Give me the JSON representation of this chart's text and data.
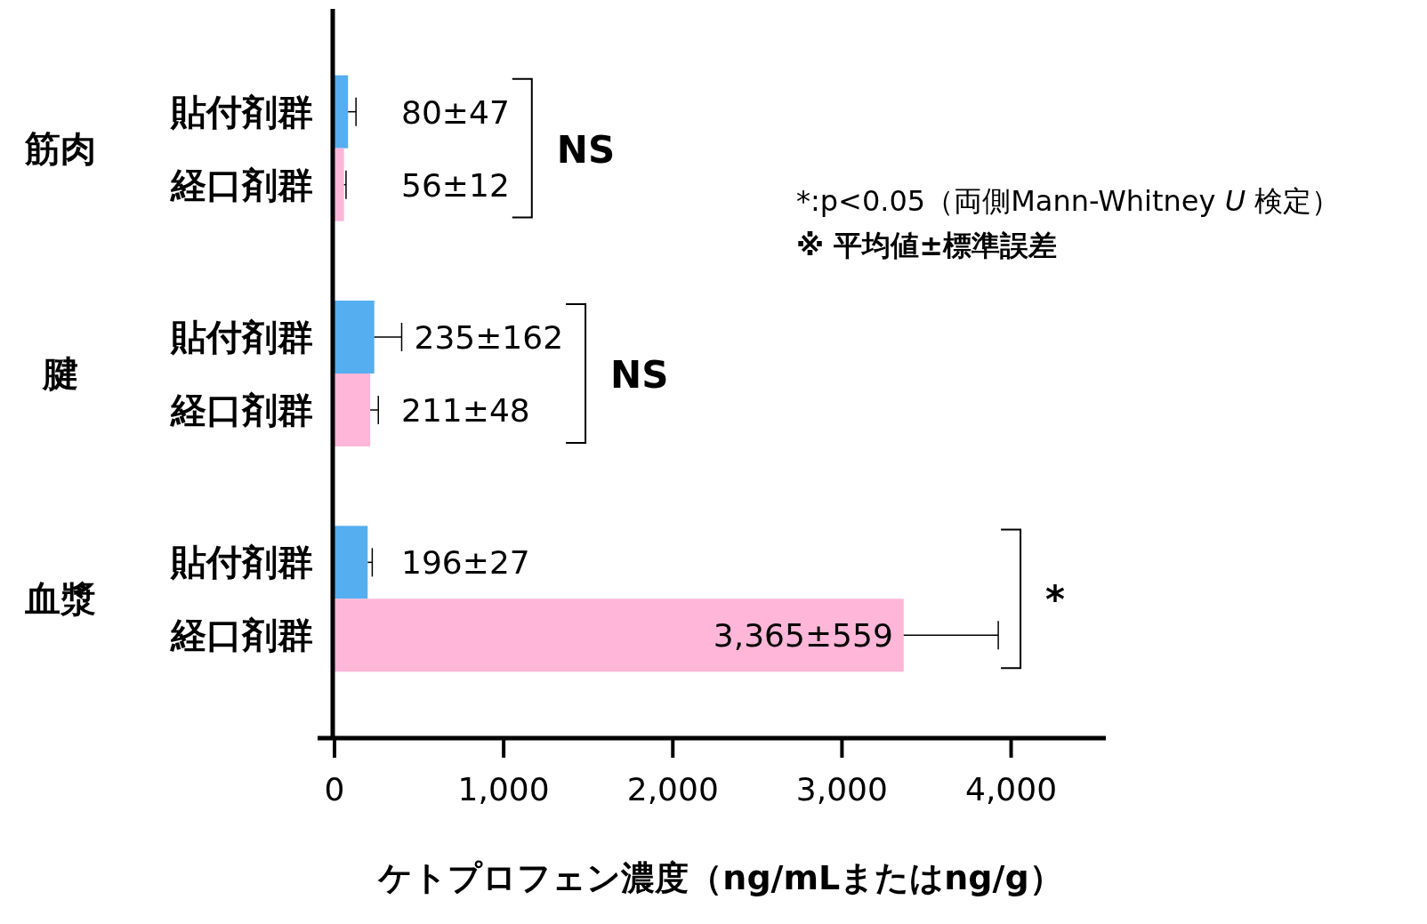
{
  "chart_data": {
    "type": "bar",
    "orientation": "horizontal",
    "categories": [
      "筋肉",
      "腱",
      "血漿"
    ],
    "series": [
      {
        "name": "貼付剤群",
        "color": "#55aef0",
        "values": [
          80,
          235,
          196
        ],
        "errors": [
          47,
          162,
          27
        ],
        "value_labels": [
          "80±47",
          "235±162",
          "196±27"
        ]
      },
      {
        "name": "経口剤群",
        "color": "#ffb6d8",
        "values": [
          56,
          211,
          3365
        ],
        "errors": [
          12,
          48,
          559
        ],
        "value_labels": [
          "56±12",
          "211±48",
          "3,365±559"
        ]
      }
    ],
    "xlim": [
      -100,
      4560
    ],
    "xticks": [
      0,
      {
        "value": 1000,
        "label": "1,000"
      },
      {
        "value": 2000,
        "label": "2,000"
      },
      {
        "value": 3000,
        "label": "3,000"
      },
      {
        "value": 4000,
        "label": "4,000"
      }
    ],
    "xlabel": "ケトプロフェン濃度（ng/mLまたはng/g）",
    "annotations": [
      "NS",
      "NS",
      "*",
      "*:p<0.05（両側Mann-Whitney *U* 検定）",
      "※ 平均値±標準誤差"
    ],
    "stacked": false
  }
}
